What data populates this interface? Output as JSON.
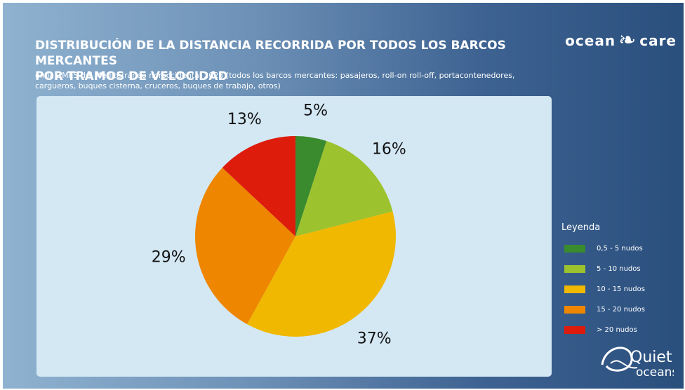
{
  "header": {
    "title_line1": "DISTRIBUCIÓN DE LA DISTANCIA RECORRIDA POR TODOS LOS BARCOS MERCANTES",
    "title_line2": "POR TRAMOS DE VELOCIDAD",
    "subtitle_line1": "en la ZMES del Mediterráneo noroccidental 2023 (todos los barcos mercantes: pasajeros, roll-on roll-off, portacontenedores,",
    "subtitle_line2": "cargueros, buques cisterna, cruceros, buques de trabajo, otros)"
  },
  "logos": {
    "oceancare_left": "ocean",
    "oceancare_right": "care",
    "quiet_main": "Quiet",
    "quiet_sub": "oceans"
  },
  "legend": {
    "title": "Leyenda"
  },
  "colors": {
    "background_gradient": [
      "#8fb2d0",
      "#2a4f7d"
    ],
    "panel": "#d4e8f4"
  },
  "chart_data": {
    "type": "pie",
    "title": "",
    "slices": [
      {
        "name": "0,5 - 5 nudos",
        "value": 5,
        "label": "5%",
        "color": "#3a8a2e"
      },
      {
        "name": "5 - 10 nudos",
        "value": 16,
        "label": "16%",
        "color": "#9cc22e"
      },
      {
        "name": "10 - 15 nudos",
        "value": 37,
        "label": "37%",
        "color": "#f0b800"
      },
      {
        "name": "15 - 20 nudos",
        "value": 29,
        "label": "29%",
        "color": "#ee8600"
      },
      {
        "name": "> 20 nudos",
        "value": 13,
        "label": "13%",
        "color": "#dd1c0c"
      }
    ],
    "start": "12 o'clock",
    "direction": "clockwise",
    "legend_position": "right"
  }
}
